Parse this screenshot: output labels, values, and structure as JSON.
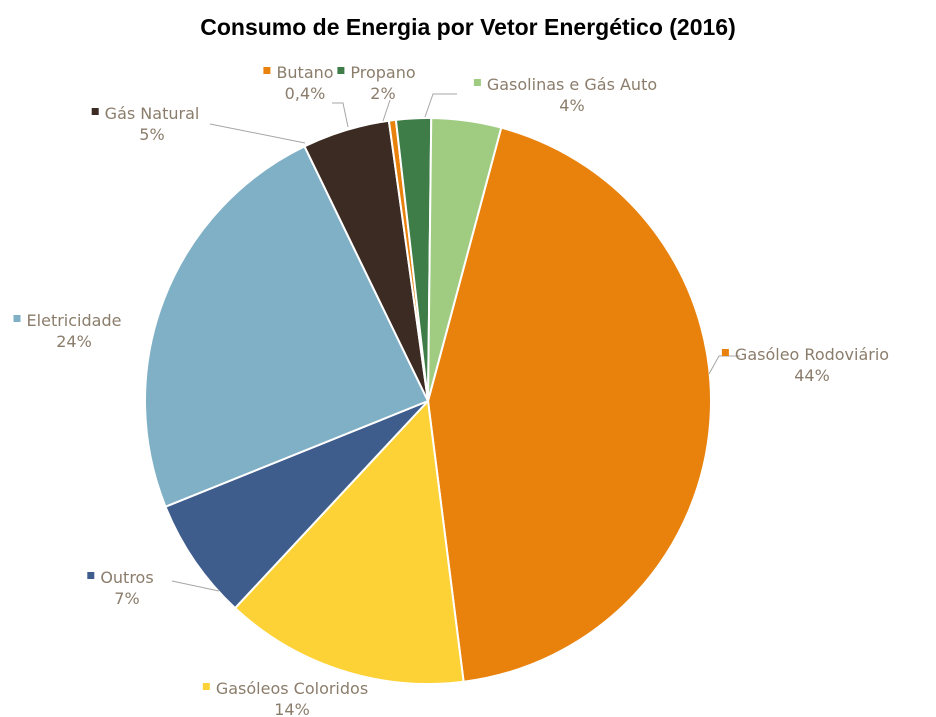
{
  "chart_data": {
    "type": "pie",
    "title": "Consumo de Energia por Vetor Energético (2016)",
    "slices": [
      {
        "name": "Gasóleo Rodoviário",
        "value": 44,
        "label_value": "44%",
        "color": "#E8820C"
      },
      {
        "name": "Gasóleos Coloridos",
        "value": 14,
        "label_value": "14%",
        "color": "#FDD236"
      },
      {
        "name": "Outros",
        "value": 7,
        "label_value": "7%",
        "color": "#3F5D8C"
      },
      {
        "name": "Eletricidade",
        "value": 24,
        "label_value": "24%",
        "color": "#80B0C6"
      },
      {
        "name": "Gás Natural",
        "value": 5,
        "label_value": "5%",
        "color": "#3C2B22"
      },
      {
        "name": "Butano",
        "value": 0.4,
        "label_value": "0,4%",
        "color": "#E8820C"
      },
      {
        "name": "Propano",
        "value": 2,
        "label_value": "2%",
        "color": "#3E7D47"
      },
      {
        "name": "Gasolinas e Gás Auto",
        "value": 4,
        "label_value": "4%",
        "color": "#A0CC82"
      }
    ],
    "start_angle_deg": 15,
    "direction": "clockwise",
    "legend": "none",
    "data_labels": "outside with leader lines"
  }
}
